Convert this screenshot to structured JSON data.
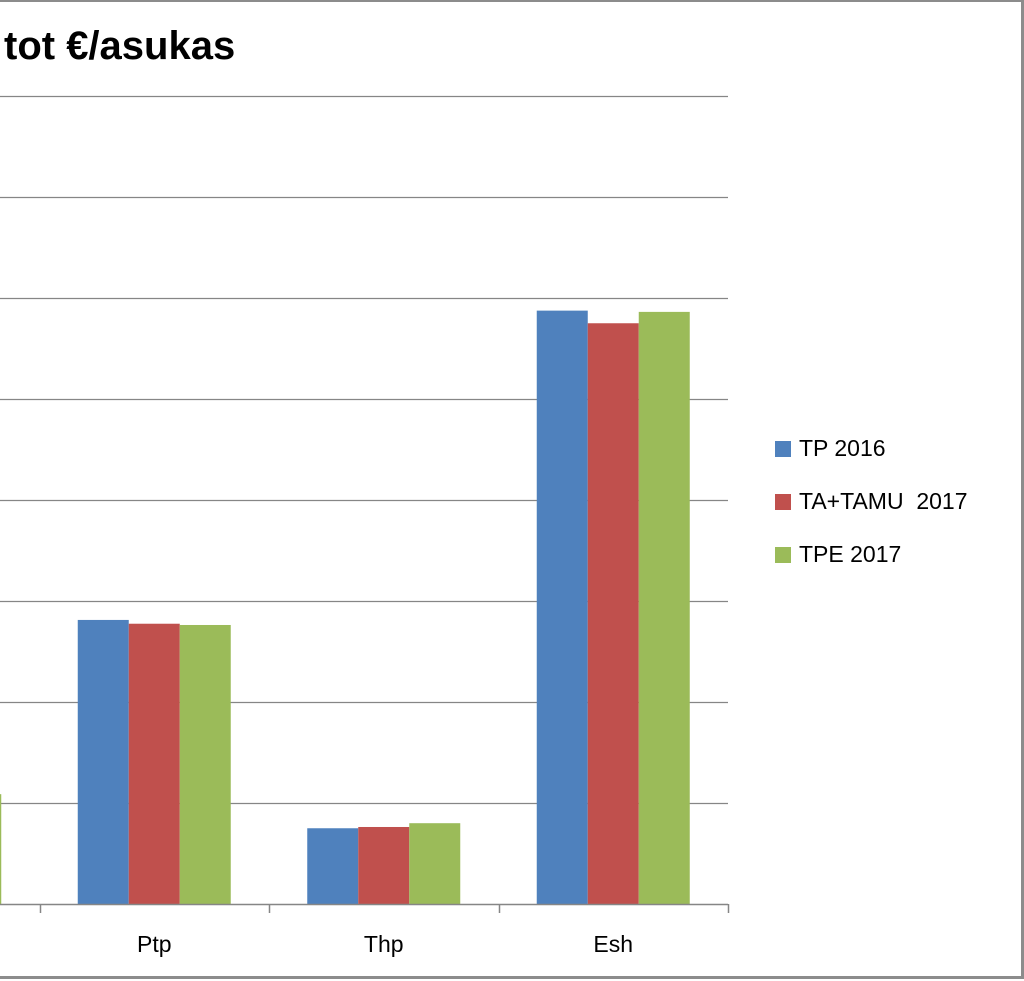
{
  "chart_data": {
    "type": "bar",
    "title": "tot €/asukas",
    "categories": [
      "",
      "Ptp",
      "Thp",
      "Esh"
    ],
    "series": [
      {
        "name": "TP 2016",
        "color": "#4f81bd",
        "values": [
          null,
          1125,
          300,
          2350
        ]
      },
      {
        "name": "TA+TAMU  2017",
        "color": "#c0504d",
        "values": [
          null,
          1110,
          305,
          2300
        ]
      },
      {
        "name": "TPE 2017",
        "color": "#9bbb59",
        "values": [
          435,
          1105,
          320,
          2345
        ]
      }
    ],
    "ylim": [
      0,
      3200
    ],
    "grid": true,
    "legend": "right"
  }
}
